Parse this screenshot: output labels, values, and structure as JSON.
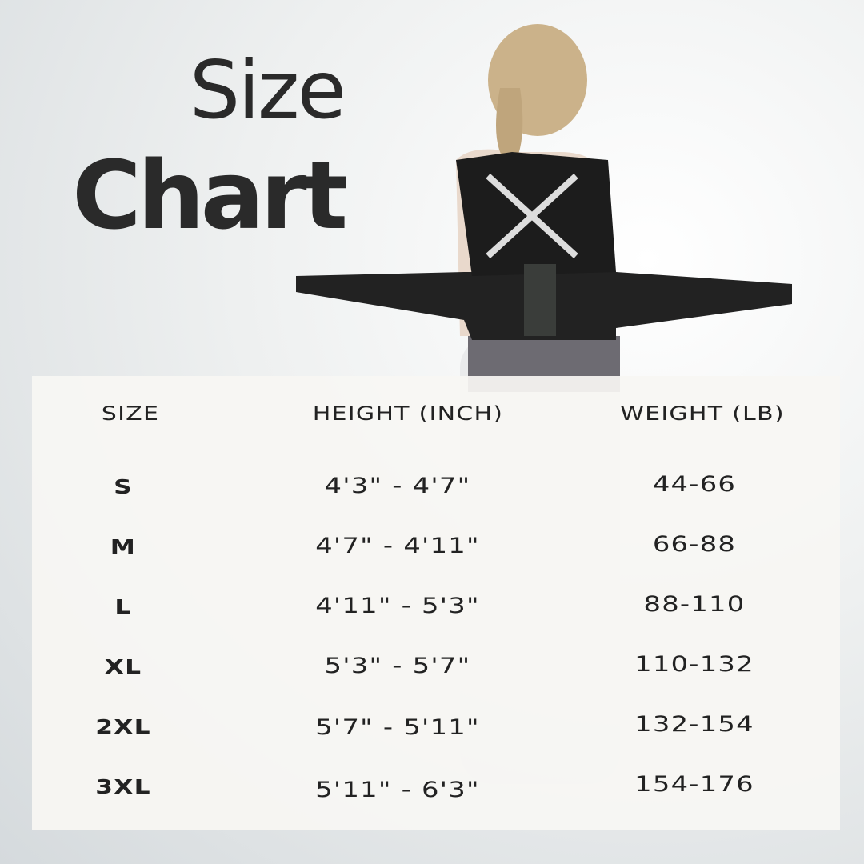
{
  "title": {
    "line1": "Size",
    "line2": "Chart"
  },
  "table": {
    "headers": [
      "SIZE",
      "HEIGHT (INCH)",
      "WEIGHT (LB)"
    ],
    "rows": [
      {
        "size": "S",
        "height": "4'3\" - 4'7\"",
        "weight": "44-66"
      },
      {
        "size": "M",
        "height": "4'7\" - 4'11\"",
        "weight": "66-88"
      },
      {
        "size": "L",
        "height": "4'11\" - 5'3\"",
        "weight": "88-110"
      },
      {
        "size": "XL",
        "height": "5'3\" - 5'7\"",
        "weight": "110-132"
      },
      {
        "size": "2XL",
        "height": "5'7\" - 5'11\"",
        "weight": "132-154"
      },
      {
        "size": "3XL",
        "height": "5'11\" - 6'3\"",
        "weight": "154-176"
      }
    ]
  },
  "colors": {
    "text": "#222222",
    "panel": "#f6f5f2",
    "brace": "#1a1a1a"
  }
}
